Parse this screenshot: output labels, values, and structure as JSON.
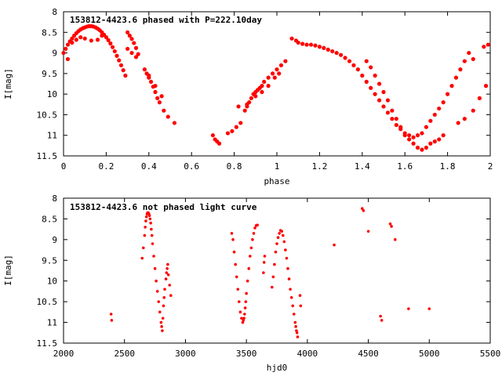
{
  "chart_data": [
    {
      "type": "scatter",
      "title": "153812-4423.6 phased with P=222.10day",
      "xlabel": "phase",
      "ylabel": "I[mag]",
      "xlim": [
        0,
        2
      ],
      "ylim": [
        8,
        11.5
      ],
      "y_inverted": true,
      "grid": false,
      "legend": "none",
      "marker_color": "#ff0000",
      "xticks": [
        0,
        0.2,
        0.4,
        0.6,
        0.8,
        1,
        1.2,
        1.4,
        1.6,
        1.8,
        2
      ],
      "xtick_labels": [
        "0",
        "0.2",
        "0.4",
        "0.6",
        "0.8",
        "1",
        "1.2",
        "1.4",
        "1.6",
        "1.8",
        "2"
      ],
      "yticks": [
        8,
        8.5,
        9,
        9.5,
        10,
        10.5,
        11,
        11.5
      ],
      "ytick_labels": [
        "8",
        "8.5",
        "9",
        "9.5",
        "10",
        "10.5",
        "11",
        "11.5"
      ],
      "series": [
        {
          "x": [
            0.0,
            0.01,
            0.02,
            0.03,
            0.04,
            0.05,
            0.06,
            0.07,
            0.08,
            0.09,
            0.1,
            0.11,
            0.12,
            0.13,
            0.14,
            0.15,
            0.16,
            0.17,
            0.18,
            0.19,
            0.2,
            0.21,
            0.22,
            0.23,
            0.24,
            0.25,
            0.26,
            0.27,
            0.28,
            0.29,
            0.3,
            0.31,
            0.32,
            0.33,
            0.34,
            0.35,
            0.02,
            0.04,
            0.06,
            0.08,
            0.1,
            0.13,
            0.16,
            0.18,
            0.3,
            0.32,
            0.34,
            0.38,
            0.39,
            0.4,
            0.41,
            0.42,
            0.43,
            0.44,
            0.45,
            0.47,
            0.49,
            0.52,
            0.4,
            0.43,
            0.46,
            0.7,
            0.71,
            0.72,
            0.73,
            0.77,
            0.79,
            0.81,
            0.83,
            0.85,
            0.86,
            0.87,
            0.88,
            0.89,
            0.9,
            0.91,
            0.92,
            0.93,
            0.94,
            0.96,
            0.98,
            1.0,
            1.02,
            1.04,
            0.82,
            0.86,
            0.9,
            0.93,
            0.96,
            0.99,
            1.01,
            1.07,
            1.09,
            1.1,
            1.12,
            1.14,
            1.16,
            1.18,
            1.2,
            1.22,
            1.24,
            1.26,
            1.28,
            1.3,
            1.32,
            1.34,
            1.36,
            1.38,
            1.4,
            1.42,
            1.44,
            1.46,
            1.48,
            1.5,
            1.52,
            1.54,
            1.56,
            1.58,
            1.6,
            1.62,
            1.64,
            1.66,
            1.68,
            1.7,
            1.72,
            1.74,
            1.76,
            1.78,
            1.8,
            1.82,
            1.84,
            1.86,
            1.88,
            1.9,
            1.42,
            1.44,
            1.46,
            1.48,
            1.5,
            1.52,
            1.54,
            1.56,
            1.58,
            1.6,
            1.62,
            1.64,
            1.66,
            1.68,
            1.7,
            1.72,
            1.74,
            1.76,
            1.78,
            1.85,
            1.88,
            1.92,
            1.95,
            1.98,
            1.99,
            1.97,
            1.92
          ],
          "y": [
            9.0,
            8.9,
            8.8,
            8.72,
            8.65,
            8.58,
            8.52,
            8.47,
            8.43,
            8.4,
            8.38,
            8.36,
            8.35,
            8.35,
            8.36,
            8.38,
            8.41,
            8.45,
            8.5,
            8.56,
            8.62,
            8.69,
            8.77,
            8.86,
            8.96,
            9.07,
            9.18,
            9.3,
            9.42,
            9.55,
            8.5,
            8.58,
            8.66,
            8.76,
            8.88,
            9.03,
            9.15,
            8.75,
            8.68,
            8.62,
            8.65,
            8.7,
            8.68,
            8.58,
            8.9,
            9.0,
            9.1,
            9.4,
            9.5,
            9.6,
            9.7,
            9.82,
            9.95,
            10.1,
            10.2,
            10.4,
            10.55,
            10.7,
            9.55,
            9.8,
            10.05,
            11.0,
            11.1,
            11.15,
            11.2,
            10.95,
            10.9,
            10.8,
            10.7,
            10.4,
            10.3,
            10.2,
            10.1,
            10.0,
            9.95,
            9.9,
            9.85,
            9.8,
            9.7,
            9.6,
            9.5,
            9.4,
            9.3,
            9.2,
            10.3,
            10.25,
            10.05,
            9.95,
            9.8,
            9.6,
            9.5,
            8.65,
            8.7,
            8.75,
            8.78,
            8.8,
            8.8,
            8.82,
            8.85,
            8.88,
            8.92,
            8.96,
            9.0,
            9.05,
            9.12,
            9.2,
            9.3,
            9.4,
            9.55,
            9.7,
            9.85,
            10.0,
            10.15,
            10.3,
            10.45,
            10.6,
            10.75,
            10.85,
            10.95,
            11.0,
            11.05,
            11.0,
            10.95,
            10.8,
            10.65,
            10.5,
            10.35,
            10.2,
            10.0,
            9.8,
            9.6,
            9.4,
            9.2,
            9.0,
            9.2,
            9.35,
            9.55,
            9.75,
            9.95,
            10.15,
            10.4,
            10.6,
            10.8,
            11.0,
            11.1,
            11.2,
            11.3,
            11.35,
            11.3,
            11.2,
            11.15,
            11.1,
            11.0,
            10.7,
            10.6,
            10.4,
            10.1,
            9.8,
            8.8,
            8.85,
            9.15
          ]
        }
      ]
    },
    {
      "type": "scatter",
      "title": "153812-4423.6 not phased light curve",
      "xlabel": "hjd0",
      "ylabel": "I[mag]",
      "xlim": [
        2000,
        5500
      ],
      "ylim": [
        8,
        11.5
      ],
      "y_inverted": true,
      "grid": false,
      "legend": "none",
      "marker_color": "#ff0000",
      "xticks": [
        2000,
        2500,
        3000,
        3500,
        4000,
        4500,
        5000,
        5500
      ],
      "xtick_labels": [
        "2000",
        "2500",
        "3000",
        "3500",
        "4000",
        "4500",
        "5000",
        "5500"
      ],
      "yticks": [
        8,
        8.5,
        9,
        9.5,
        10,
        10.5,
        11,
        11.5
      ],
      "ytick_labels": [
        "8",
        "8.5",
        "9",
        "9.5",
        "10",
        "10.5",
        "11",
        "11.5"
      ],
      "series": [
        {
          "x": [
            2390,
            2395,
            2645,
            2655,
            2665,
            2670,
            2675,
            2680,
            2685,
            2690,
            2695,
            2700,
            2705,
            2710,
            2715,
            2720,
            2725,
            2730,
            2740,
            2750,
            2760,
            2770,
            2780,
            2790,
            2800,
            2805,
            2810,
            2815,
            2820,
            2825,
            2830,
            2840,
            2845,
            2850,
            2855,
            2860,
            2870,
            2880,
            3380,
            3390,
            3400,
            3410,
            3420,
            3430,
            3440,
            3450,
            3460,
            3470,
            3475,
            3480,
            3485,
            3490,
            3495,
            3500,
            3510,
            3520,
            3530,
            3540,
            3550,
            3560,
            3570,
            3580,
            3590,
            3640,
            3645,
            3650,
            3710,
            3720,
            3730,
            3740,
            3750,
            3760,
            3770,
            3780,
            3790,
            3800,
            3810,
            3820,
            3830,
            3840,
            3850,
            3860,
            3870,
            3880,
            3890,
            3900,
            3905,
            3910,
            3915,
            3920,
            3940,
            3945,
            4220,
            4450,
            4460,
            4500,
            4600,
            4610,
            4680,
            4690,
            4720,
            4830,
            5000
          ],
          "y": [
            10.8,
            10.95,
            9.45,
            9.2,
            8.9,
            8.7,
            8.55,
            8.45,
            8.38,
            8.35,
            8.35,
            8.38,
            8.42,
            8.5,
            8.6,
            8.75,
            8.9,
            9.1,
            9.4,
            9.7,
            10.0,
            10.25,
            10.5,
            10.75,
            11.0,
            11.1,
            11.2,
            10.9,
            10.6,
            10.4,
            10.2,
            9.95,
            9.8,
            9.7,
            9.6,
            9.85,
            10.1,
            10.35,
            8.85,
            9.0,
            9.3,
            9.6,
            9.9,
            10.2,
            10.5,
            10.75,
            10.9,
            11.0,
            10.95,
            10.9,
            10.8,
            10.65,
            10.5,
            10.3,
            10.0,
            9.7,
            9.4,
            9.2,
            9.0,
            8.85,
            8.72,
            8.66,
            8.65,
            9.8,
            9.55,
            9.4,
            10.15,
            9.9,
            9.6,
            9.3,
            9.1,
            8.95,
            8.85,
            8.78,
            8.8,
            8.9,
            9.05,
            9.25,
            9.45,
            9.7,
            9.95,
            10.2,
            10.4,
            10.6,
            10.8,
            11.0,
            11.1,
            11.2,
            11.25,
            11.35,
            10.35,
            10.6,
            9.13,
            8.25,
            8.3,
            8.8,
            10.85,
            10.95,
            8.62,
            8.68,
            9.0,
            10.67,
            10.67
          ]
        }
      ]
    }
  ]
}
